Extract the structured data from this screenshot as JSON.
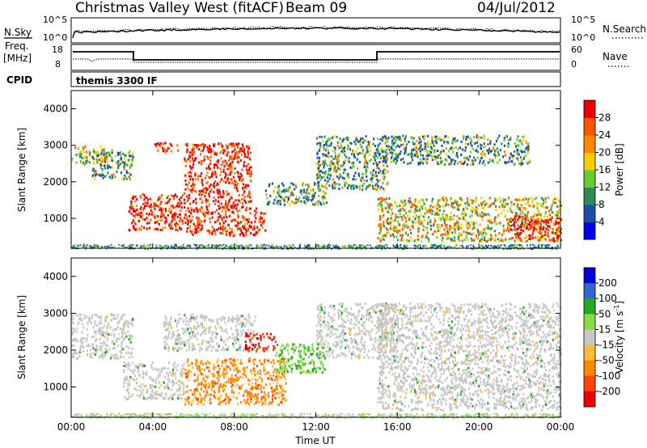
{
  "header": {
    "station": "Christmas Valley West (fitACF)",
    "beam": "Beam 09",
    "date": "04/Jul/2012"
  },
  "status_panel": {
    "nsky_label": "N.Sky",
    "nsearch_label": "N.Search",
    "noise_ticks_left": [
      "10^5",
      "10^0"
    ],
    "noise_ticks_right": [
      "10^5",
      "10^0"
    ],
    "freq_label_line1": "Freq.",
    "freq_label_line2": "[MHz]",
    "freq_ticks": [
      "18",
      "8"
    ],
    "nave_label": "Nave",
    "nave_ticks": [
      "60",
      "0"
    ],
    "cpid_label": "CPID",
    "cpid_value": "themis 3300 IF"
  },
  "colors": {
    "power_scale": [
      "#0000ee",
      "#1e4fa8",
      "#2e8b57",
      "#66cc33",
      "#ffcc00",
      "#ff8800",
      "#ff5500",
      "#ee0000"
    ],
    "velocity_scale": [
      "#0000dd",
      "#3366cc",
      "#22aa22",
      "#88dd44",
      "#c8c8c8",
      "#ffbb33",
      "#ff8800",
      "#ff4400",
      "#ee0000"
    ]
  },
  "chart_data": [
    {
      "type": "heatmap",
      "title": "Power",
      "xlabel": "",
      "ylabel": "Slant Range [km]",
      "x_ticks": [
        "00:00",
        "04:00",
        "08:00",
        "12:00",
        "16:00",
        "20:00",
        "00:00"
      ],
      "y_ticks": [
        "1000",
        "2000",
        "3000",
        "4000"
      ],
      "y_range": [
        180,
        4500
      ],
      "colorbar_label": "Power [dB]",
      "colorbar_ticks": [
        "4",
        "8",
        "12",
        "16",
        "20",
        "24",
        "28"
      ],
      "scatter_regions": [
        {
          "t": [
            0.0,
            1.8
          ],
          "r": [
            2500,
            3000
          ],
          "value": "mid-high"
        },
        {
          "t": [
            1.0,
            3.0
          ],
          "r": [
            2100,
            2900
          ],
          "value": "mid"
        },
        {
          "t": [
            2.8,
            5.5
          ],
          "r": [
            700,
            1700
          ],
          "value": "high"
        },
        {
          "t": [
            4.0,
            5.2
          ],
          "r": [
            2850,
            3100
          ],
          "value": "high"
        },
        {
          "t": [
            5.5,
            8.8
          ],
          "r": [
            1300,
            3100
          ],
          "value": "high"
        },
        {
          "t": [
            5.5,
            9.5
          ],
          "r": [
            550,
            1300
          ],
          "value": "high"
        },
        {
          "t": [
            9.5,
            12.5
          ],
          "r": [
            1400,
            2000
          ],
          "value": "mid"
        },
        {
          "t": [
            12.0,
            15.5
          ],
          "r": [
            1800,
            3300
          ],
          "value": "mid"
        },
        {
          "t": [
            15.2,
            22.5
          ],
          "r": [
            2500,
            3300
          ],
          "value": "mid"
        },
        {
          "t": [
            15.0,
            24.0
          ],
          "r": [
            400,
            1600
          ],
          "value": "mid-high"
        },
        {
          "t": [
            21.5,
            24.0
          ],
          "r": [
            400,
            1100
          ],
          "value": "high"
        }
      ]
    },
    {
      "type": "heatmap",
      "title": "Velocity",
      "xlabel": "Time UT",
      "ylabel": "Slant Range [km]",
      "x_ticks": [
        "00:00",
        "04:00",
        "08:00",
        "12:00",
        "16:00",
        "20:00",
        "00:00"
      ],
      "y_ticks": [
        "1000",
        "2000",
        "3000",
        "4000"
      ],
      "y_range": [
        180,
        4500
      ],
      "colorbar_label": "Velocity [m s^-1]",
      "colorbar_ticks": [
        "200",
        "100",
        "50",
        "15",
        "-15",
        "-50",
        "-100",
        "-200"
      ],
      "scatter_regions": [
        {
          "t": [
            0.0,
            3.0
          ],
          "r": [
            1800,
            3000
          ],
          "value": "low"
        },
        {
          "t": [
            2.5,
            5.5
          ],
          "r": [
            700,
            1700
          ],
          "value": "low"
        },
        {
          "t": [
            4.5,
            9.0
          ],
          "r": [
            2000,
            3000
          ],
          "value": "low"
        },
        {
          "t": [
            5.5,
            10.5
          ],
          "r": [
            550,
            1800
          ],
          "value": "neg-50"
        },
        {
          "t": [
            8.5,
            10.0
          ],
          "r": [
            2000,
            2500
          ],
          "value": "neg-200"
        },
        {
          "t": [
            10.0,
            12.5
          ],
          "r": [
            1400,
            2200
          ],
          "value": "pos-50"
        },
        {
          "t": [
            12.0,
            16.0
          ],
          "r": [
            1800,
            3300
          ],
          "value": "low"
        },
        {
          "t": [
            15.0,
            24.0
          ],
          "r": [
            400,
            3300
          ],
          "value": "low"
        }
      ]
    }
  ]
}
